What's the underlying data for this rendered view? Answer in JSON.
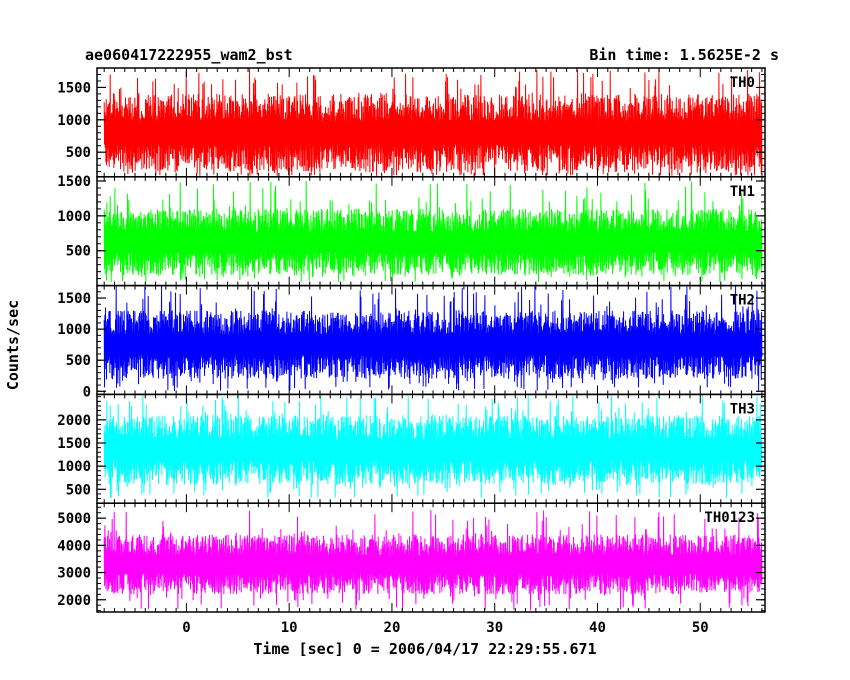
{
  "chart_data": {
    "type": "line",
    "title": "ae060417222955_wam2_bst",
    "bin_time_label": "Bin time: 1.5625E-2 s",
    "xlabel": "Time [sec] 0 = 2006/04/17 22:29:55.671",
    "ylabel": "Counts/sec",
    "xlim": [
      -8.7,
      56.3
    ],
    "x_ticks": [
      0,
      10,
      20,
      30,
      40,
      50
    ],
    "x_tick_labels": [
      "0",
      "10",
      "20",
      "30",
      "40",
      "50"
    ],
    "data_x_range": [
      -8.0,
      56.0
    ],
    "series": [
      {
        "name": "TH0",
        "color": "#ff0000",
        "ylim": [
          120,
          1800
        ],
        "y_ticks": [
          500,
          1000,
          1500
        ],
        "y_tick_labels": [
          "500",
          "1000",
          "1500"
        ],
        "typical_range": [
          200,
          1400
        ],
        "peak": 1800,
        "trough": 130
      },
      {
        "name": "TH1",
        "color": "#00ff00",
        "ylim": [
          0,
          1560
        ],
        "y_ticks": [
          500,
          1000,
          1500
        ],
        "y_tick_labels": [
          "500",
          "1000",
          "1500"
        ],
        "typical_range": [
          150,
          1100
        ],
        "peak": 1500,
        "trough": 50
      },
      {
        "name": "TH2",
        "color": "#0000ff",
        "ylim": [
          -50,
          1700
        ],
        "y_ticks": [
          0,
          500,
          1000,
          1500
        ],
        "y_tick_labels": [
          "0",
          "500",
          "1000",
          "1500"
        ],
        "typical_range": [
          200,
          1300
        ],
        "peak": 1700,
        "trough": 0
      },
      {
        "name": "TH3",
        "color": "#00ffff",
        "ylim": [
          200,
          2550
        ],
        "y_ticks": [
          500,
          1000,
          1500,
          2000
        ],
        "y_tick_labels": [
          "500",
          "1000",
          "1500",
          "2000"
        ],
        "typical_range": [
          600,
          2100
        ],
        "peak": 2550,
        "trough": 300
      },
      {
        "name": "TH0123",
        "color": "#ff00ff",
        "ylim": [
          1550,
          5550
        ],
        "y_ticks": [
          2000,
          3000,
          4000,
          5000
        ],
        "y_tick_labels": [
          "2000",
          "3000",
          "4000",
          "5000"
        ],
        "typical_range": [
          2200,
          4400
        ],
        "peak": 5300,
        "trough": 1600
      }
    ]
  }
}
